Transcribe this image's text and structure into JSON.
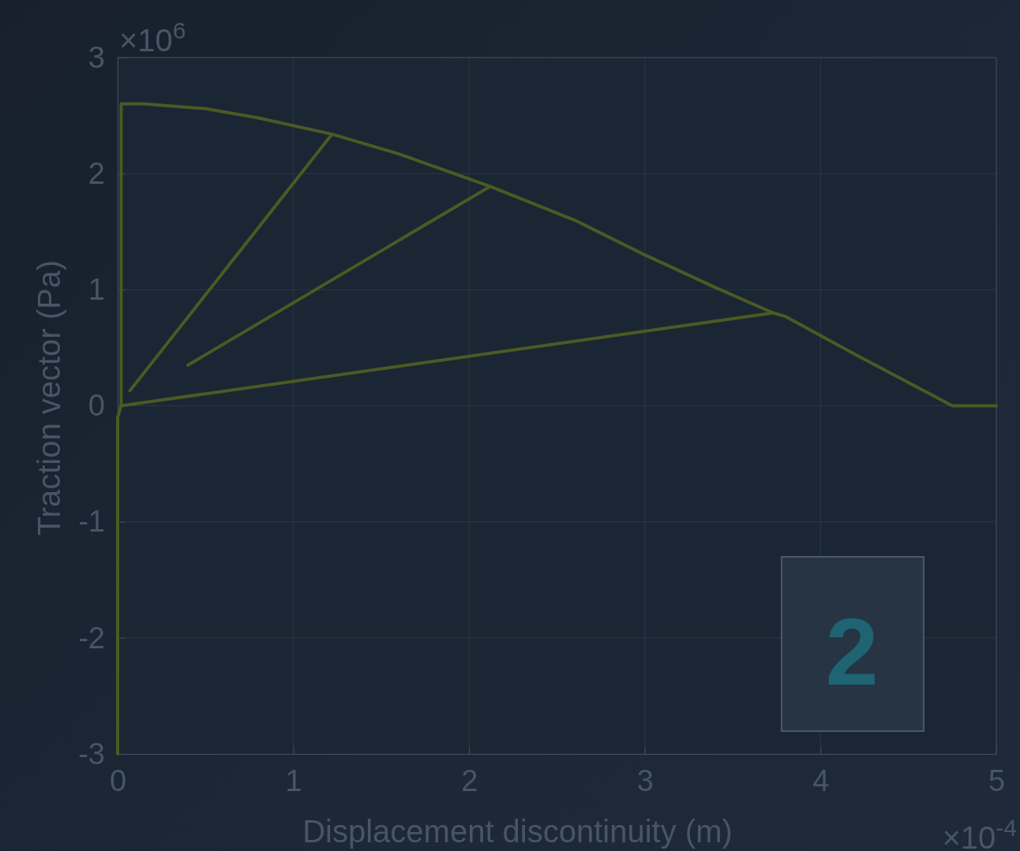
{
  "chart_data": {
    "type": "line",
    "xlabel": "Displacement discontinuity (m)",
    "ylabel": "Traction vector (Pa)",
    "xlim": [
      0,
      5
    ],
    "ylim": [
      -3,
      3
    ],
    "xticks": [
      0,
      1,
      2,
      3,
      4,
      5
    ],
    "yticks": [
      -3,
      -2,
      -1,
      0,
      1,
      2,
      3
    ],
    "grid": true,
    "annotations": [
      "×10$^{6}$",
      "×10$^{-4}$",
      "2"
    ],
    "series": [
      {
        "color": "#4b5a24",
        "x": [
          0,
          0,
          0.02,
          0.02,
          0.15,
          0.5,
          0.8,
          1.22,
          1.6,
          2.12,
          2.6,
          3.0,
          3.4,
          3.73,
          3.8,
          4.2,
          4.75,
          5
        ],
        "values": [
          -3,
          -0.1,
          0,
          2.6,
          2.6,
          2.56,
          2.48,
          2.34,
          2.17,
          1.89,
          1.6,
          1.3,
          1.02,
          0.8,
          0.77,
          0.44,
          0,
          0
        ]
      },
      {
        "color": "#4b5a24",
        "x": [
          1.22,
          0.07
        ],
        "values": [
          2.34,
          0.13
        ]
      },
      {
        "color": "#4b5a24",
        "x": [
          0.4,
          2.12
        ],
        "values": [
          0.35,
          1.89
        ]
      },
      {
        "color": "#4b5a24",
        "x": [
          0.02,
          3.73
        ],
        "values": [
          0,
          0.8
        ]
      }
    ]
  }
}
